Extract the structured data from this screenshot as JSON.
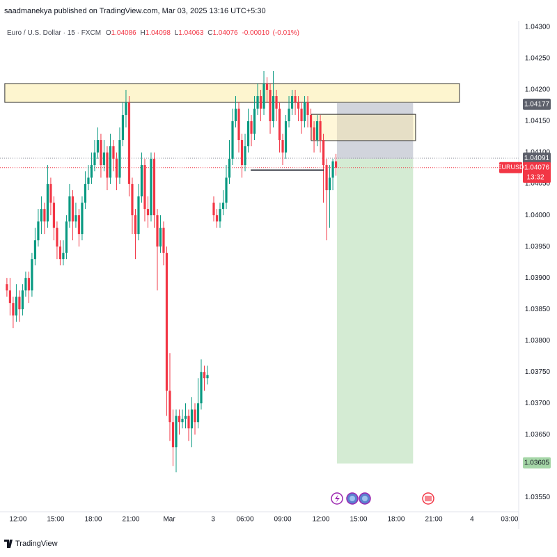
{
  "header": {
    "text": "saadmanekya published on TradingView.com, Mar 03, 2025 13:16 UTC+5:30"
  },
  "footer": {
    "brand": "TradingView"
  },
  "chart_data": {
    "type": "candlestick",
    "legend": {
      "symbol": "Euro / U.S. Dollar · 15 · FXCM",
      "open_label": "O",
      "open": 1.04086,
      "high_label": "H",
      "high": 1.04098,
      "low_label": "L",
      "low": 1.04063,
      "close_label": "C",
      "close": 1.04076,
      "change": {
        "value": -0.0001,
        "label": "-0.00010"
      },
      "change_pct": {
        "value": -0.01,
        "label": "(-0.01%)"
      }
    },
    "up_color": "#089981",
    "down_color": "#f23645",
    "xlim": [
      -2.2,
      163.3
    ],
    "ylim": [
      1.03527,
      1.0431
    ],
    "xticks": [
      {
        "value": 3.56,
        "label": "12:00"
      },
      {
        "value": 15.56,
        "label": "15:00"
      },
      {
        "value": 27.56,
        "label": "18:00"
      },
      {
        "value": 39.56,
        "label": "21:00"
      },
      {
        "value": 51.8,
        "label": "Mar"
      },
      {
        "value": 65.8,
        "label": "3"
      },
      {
        "value": 76,
        "label": "06:00"
      },
      {
        "value": 88,
        "label": "09:00"
      },
      {
        "value": 100.2,
        "label": "12:00"
      },
      {
        "value": 112.2,
        "label": "15:00"
      },
      {
        "value": 124.2,
        "label": "18:00"
      },
      {
        "value": 136.2,
        "label": "21:00"
      },
      {
        "value": 148.4,
        "label": "4"
      },
      {
        "value": 160.4,
        "label": "03:00"
      }
    ],
    "yticks": [
      {
        "value": 1.043,
        "label": "1.04300"
      },
      {
        "value": 1.0425,
        "label": "1.04250"
      },
      {
        "value": 1.042,
        "label": "1.04200"
      },
      {
        "value": 1.0415,
        "label": "1.04150"
      },
      {
        "value": 1.041,
        "label": "1.04100"
      },
      {
        "value": 1.0405,
        "label": "1.04050"
      },
      {
        "value": 1.04,
        "label": "1.04000"
      },
      {
        "value": 1.0395,
        "label": "1.03950"
      },
      {
        "value": 1.039,
        "label": "1.03900"
      },
      {
        "value": 1.0385,
        "label": "1.03850"
      },
      {
        "value": 1.038,
        "label": "1.03800"
      },
      {
        "value": 1.0375,
        "label": "1.03750"
      },
      {
        "value": 1.037,
        "label": "1.03700"
      },
      {
        "value": 1.0365,
        "label": "1.03650"
      },
      {
        "value": 1.036,
        "label": "1.03600"
      },
      {
        "value": 1.0355,
        "label": "1.03550"
      }
    ],
    "x": [
      0,
      1,
      2,
      3,
      4,
      5,
      6,
      7,
      8,
      9,
      10,
      11,
      12,
      13,
      14,
      15,
      16,
      17,
      18,
      19,
      20,
      21,
      22,
      23,
      24,
      25,
      26,
      27,
      28,
      29,
      30,
      31,
      32,
      33,
      34,
      35,
      36,
      37,
      38,
      39,
      40,
      41,
      42,
      43,
      44,
      45,
      46,
      47,
      48,
      49,
      50,
      51,
      52,
      53,
      54,
      55,
      56,
      57,
      58,
      59,
      60,
      61,
      62,
      63,
      64,
      66,
      67,
      68,
      69,
      70,
      71,
      72,
      73,
      74,
      75,
      76,
      77,
      78,
      79,
      80,
      81,
      82,
      83,
      84,
      85,
      86,
      87,
      88,
      89,
      90,
      91,
      92,
      93,
      94,
      95,
      96,
      97,
      98,
      99,
      100,
      101,
      102,
      103,
      104,
      105
    ],
    "candles": [
      [
        1.0389,
        1.039,
        1.0387,
        1.0388
      ],
      [
        1.0388,
        1.039,
        1.0384,
        1.0386
      ],
      [
        1.0386,
        1.0387,
        1.0382,
        1.0384
      ],
      [
        1.0384,
        1.0389,
        1.0383,
        1.0387
      ],
      [
        1.0387,
        1.0388,
        1.0383,
        1.0385
      ],
      [
        1.0385,
        1.0389,
        1.0384,
        1.0388
      ],
      [
        1.0388,
        1.0391,
        1.0387,
        1.039
      ],
      [
        1.039,
        1.0391,
        1.0386,
        1.0388
      ],
      [
        1.0388,
        1.0394,
        1.0387,
        1.0393
      ],
      [
        1.0393,
        1.0398,
        1.0392,
        1.0396
      ],
      [
        1.0396,
        1.0401,
        1.0395,
        1.0399
      ],
      [
        1.0399,
        1.0403,
        1.0397,
        1.0401
      ],
      [
        1.0401,
        1.0402,
        1.0397,
        1.0399
      ],
      [
        1.0399,
        1.0408,
        1.0398,
        1.0405
      ],
      [
        1.0405,
        1.0406,
        1.04,
        1.0402
      ],
      [
        1.0402,
        1.0403,
        1.0396,
        1.0398
      ],
      [
        1.0398,
        1.0399,
        1.0393,
        1.0395
      ],
      [
        1.0395,
        1.0396,
        1.0392,
        1.0393
      ],
      [
        1.0393,
        1.0396,
        1.0392,
        1.0394
      ],
      [
        1.0394,
        1.04,
        1.0393,
        1.0399
      ],
      [
        1.0399,
        1.0405,
        1.0398,
        1.0403
      ],
      [
        1.0403,
        1.0404,
        1.0396,
        1.0399
      ],
      [
        1.0399,
        1.0402,
        1.0398,
        1.04
      ],
      [
        1.04,
        1.0401,
        1.0395,
        1.0397
      ],
      [
        1.0397,
        1.0403,
        1.0396,
        1.0402
      ],
      [
        1.0402,
        1.0407,
        1.0401,
        1.0405
      ],
      [
        1.0405,
        1.0408,
        1.0404,
        1.0406
      ],
      [
        1.0406,
        1.041,
        1.0405,
        1.0408
      ],
      [
        1.0408,
        1.0412,
        1.0407,
        1.041
      ],
      [
        1.041,
        1.0414,
        1.0409,
        1.0412
      ],
      [
        1.0412,
        1.0413,
        1.0406,
        1.0408
      ],
      [
        1.0408,
        1.0412,
        1.0407,
        1.041
      ],
      [
        1.041,
        1.0411,
        1.0404,
        1.0406
      ],
      [
        1.0406,
        1.0413,
        1.0405,
        1.0411
      ],
      [
        1.0411,
        1.0412,
        1.0407,
        1.0409
      ],
      [
        1.0409,
        1.041,
        1.0404,
        1.0406
      ],
      [
        1.0406,
        1.0414,
        1.0405,
        1.0412
      ],
      [
        1.0412,
        1.0418,
        1.0411,
        1.0416
      ],
      [
        1.0416,
        1.042,
        1.0414,
        1.0418
      ],
      [
        1.0418,
        1.0419,
        1.0403,
        1.0405
      ],
      [
        1.0405,
        1.0406,
        1.0397,
        1.04
      ],
      [
        1.04,
        1.0401,
        1.0393,
        1.0397
      ],
      [
        1.0397,
        1.0405,
        1.0396,
        1.0403
      ],
      [
        1.0403,
        1.041,
        1.0402,
        1.0408
      ],
      [
        1.0408,
        1.0409,
        1.0399,
        1.0401
      ],
      [
        1.0401,
        1.0403,
        1.0398,
        1.04
      ],
      [
        1.04,
        1.041,
        1.0399,
        1.0409
      ],
      [
        1.0409,
        1.041,
        1.0398,
        1.04
      ],
      [
        1.04,
        1.0401,
        1.0388,
        1.0395
      ],
      [
        1.0395,
        1.04,
        1.0394,
        1.0398
      ],
      [
        1.0398,
        1.0399,
        1.0392,
        1.0394
      ],
      [
        1.0394,
        1.0395,
        1.0368,
        1.0372
      ],
      [
        1.0372,
        1.0378,
        1.0364,
        1.0367
      ],
      [
        1.0367,
        1.0369,
        1.036,
        1.0363
      ],
      [
        1.0363,
        1.0369,
        1.0359,
        1.0368
      ],
      [
        1.0368,
        1.0369,
        1.0365,
        1.0367
      ],
      [
        1.0367,
        1.0369,
        1.0366,
        1.03675
      ],
      [
        1.03675,
        1.037,
        1.0366,
        1.0368
      ],
      [
        1.0368,
        1.0369,
        1.0364,
        1.0366
      ],
      [
        1.0366,
        1.0371,
        1.0363,
        1.0369
      ],
      [
        1.0369,
        1.037,
        1.0365,
        1.0367
      ],
      [
        1.0367,
        1.0374,
        1.0366,
        1.037
      ],
      [
        1.037,
        1.0377,
        1.0369,
        1.0375
      ],
      [
        1.0375,
        1.0376,
        1.0372,
        1.0374
      ],
      [
        1.0374,
        1.0376,
        1.0373,
        1.03745
      ],
      [
        1.0402,
        1.0403,
        1.0399,
        1.04
      ],
      [
        1.04,
        1.0401,
        1.0398,
        1.0399
      ],
      [
        1.0399,
        1.0402,
        1.0398,
        1.0401
      ],
      [
        1.0401,
        1.0404,
        1.04,
        1.0402
      ],
      [
        1.0402,
        1.0408,
        1.0401,
        1.0406
      ],
      [
        1.0406,
        1.0412,
        1.0405,
        1.0409
      ],
      [
        1.0409,
        1.0417,
        1.0408,
        1.0415
      ],
      [
        1.0415,
        1.0419,
        1.0414,
        1.0417
      ],
      [
        1.0417,
        1.0418,
        1.041,
        1.0412
      ],
      [
        1.0412,
        1.0413,
        1.0406,
        1.0408
      ],
      [
        1.0408,
        1.0413,
        1.0407,
        1.0411
      ],
      [
        1.0411,
        1.0417,
        1.041,
        1.0415
      ],
      [
        1.0415,
        1.0416,
        1.0411,
        1.0413
      ],
      [
        1.0413,
        1.0419,
        1.0412,
        1.0417
      ],
      [
        1.0417,
        1.0421,
        1.0416,
        1.0419
      ],
      [
        1.0419,
        1.042,
        1.0415,
        1.0417
      ],
      [
        1.0417,
        1.0423,
        1.0416,
        1.0421
      ],
      [
        1.0421,
        1.0422,
        1.0418,
        1.042
      ],
      [
        1.042,
        1.0421,
        1.0413,
        1.0415
      ],
      [
        1.0415,
        1.0423,
        1.0414,
        1.0419
      ],
      [
        1.0419,
        1.042,
        1.0415,
        1.0417
      ],
      [
        1.0417,
        1.0418,
        1.041,
        1.0412
      ],
      [
        1.0412,
        1.0413,
        1.0408,
        1.041
      ],
      [
        1.041,
        1.0416,
        1.0409,
        1.0415
      ],
      [
        1.0415,
        1.0419,
        1.0414,
        1.0417
      ],
      [
        1.0417,
        1.042,
        1.0416,
        1.0419
      ],
      [
        1.0419,
        1.042,
        1.0416,
        1.0418
      ],
      [
        1.0418,
        1.0419,
        1.0415,
        1.0417
      ],
      [
        1.0417,
        1.0418,
        1.0413,
        1.0415
      ],
      [
        1.0415,
        1.0419,
        1.0414,
        1.0418
      ],
      [
        1.0418,
        1.0419,
        1.0414,
        1.0416
      ],
      [
        1.0416,
        1.0417,
        1.0412,
        1.0414
      ],
      [
        1.0414,
        1.0415,
        1.041,
        1.0412
      ],
      [
        1.0412,
        1.0416,
        1.0411,
        1.0415
      ],
      [
        1.0415,
        1.0416,
        1.041,
        1.0412
      ],
      [
        1.0412,
        1.0413,
        1.0402,
        1.0408
      ],
      [
        1.0408,
        1.0409,
        1.0396,
        1.0404
      ],
      [
        1.0404,
        1.0408,
        1.0398,
        1.0406
      ],
      [
        1.0406,
        1.0409,
        1.0404,
        1.04086
      ],
      [
        1.04086,
        1.04098,
        1.04063,
        1.04076
      ]
    ],
    "zones": [
      {
        "top": 1.0421,
        "bottom": 1.0418,
        "x0": -0.67,
        "x1": 144.4,
        "fill": "#fdf5cf",
        "stroke": "#333333"
      },
      {
        "top": 1.04179,
        "bottom": 1.0409,
        "x0": 105.3,
        "x1": 129.6,
        "fill": "#d1d4dc",
        "stroke": "none"
      },
      {
        "top": 1.0409,
        "bottom": 1.03604,
        "x0": 105.3,
        "x1": 129.6,
        "fill": "#d4ebd3",
        "stroke": "none"
      },
      {
        "top": 1.04161,
        "bottom": 1.04119,
        "x0": 97.1,
        "x1": 130.4,
        "fill": "rgba(255,238,170,0.45)",
        "stroke": "#333333"
      }
    ],
    "level_line": {
      "value": 1.04072,
      "x0": 77.8,
      "x1": 101.1,
      "color": "#131722"
    },
    "dotted_lines": [
      {
        "value": 1.04091,
        "color": "#9598a1"
      },
      {
        "value": 1.04076,
        "color": "#f23645"
      }
    ],
    "price_tags": [
      {
        "value": 1.04177,
        "bg": "#5d606b",
        "text_color": "#ffffff"
      },
      {
        "value": 1.04091,
        "bg": "#5d606b",
        "text_color": "#ffffff"
      },
      {
        "value": 1.04076,
        "bg": "#f23645",
        "text_color": "#ffffff",
        "symbol": "EURUSD",
        "countdown": "13:32"
      },
      {
        "value": 1.03605,
        "bg": "#a5d6a7",
        "text_color": "#131722"
      }
    ]
  }
}
